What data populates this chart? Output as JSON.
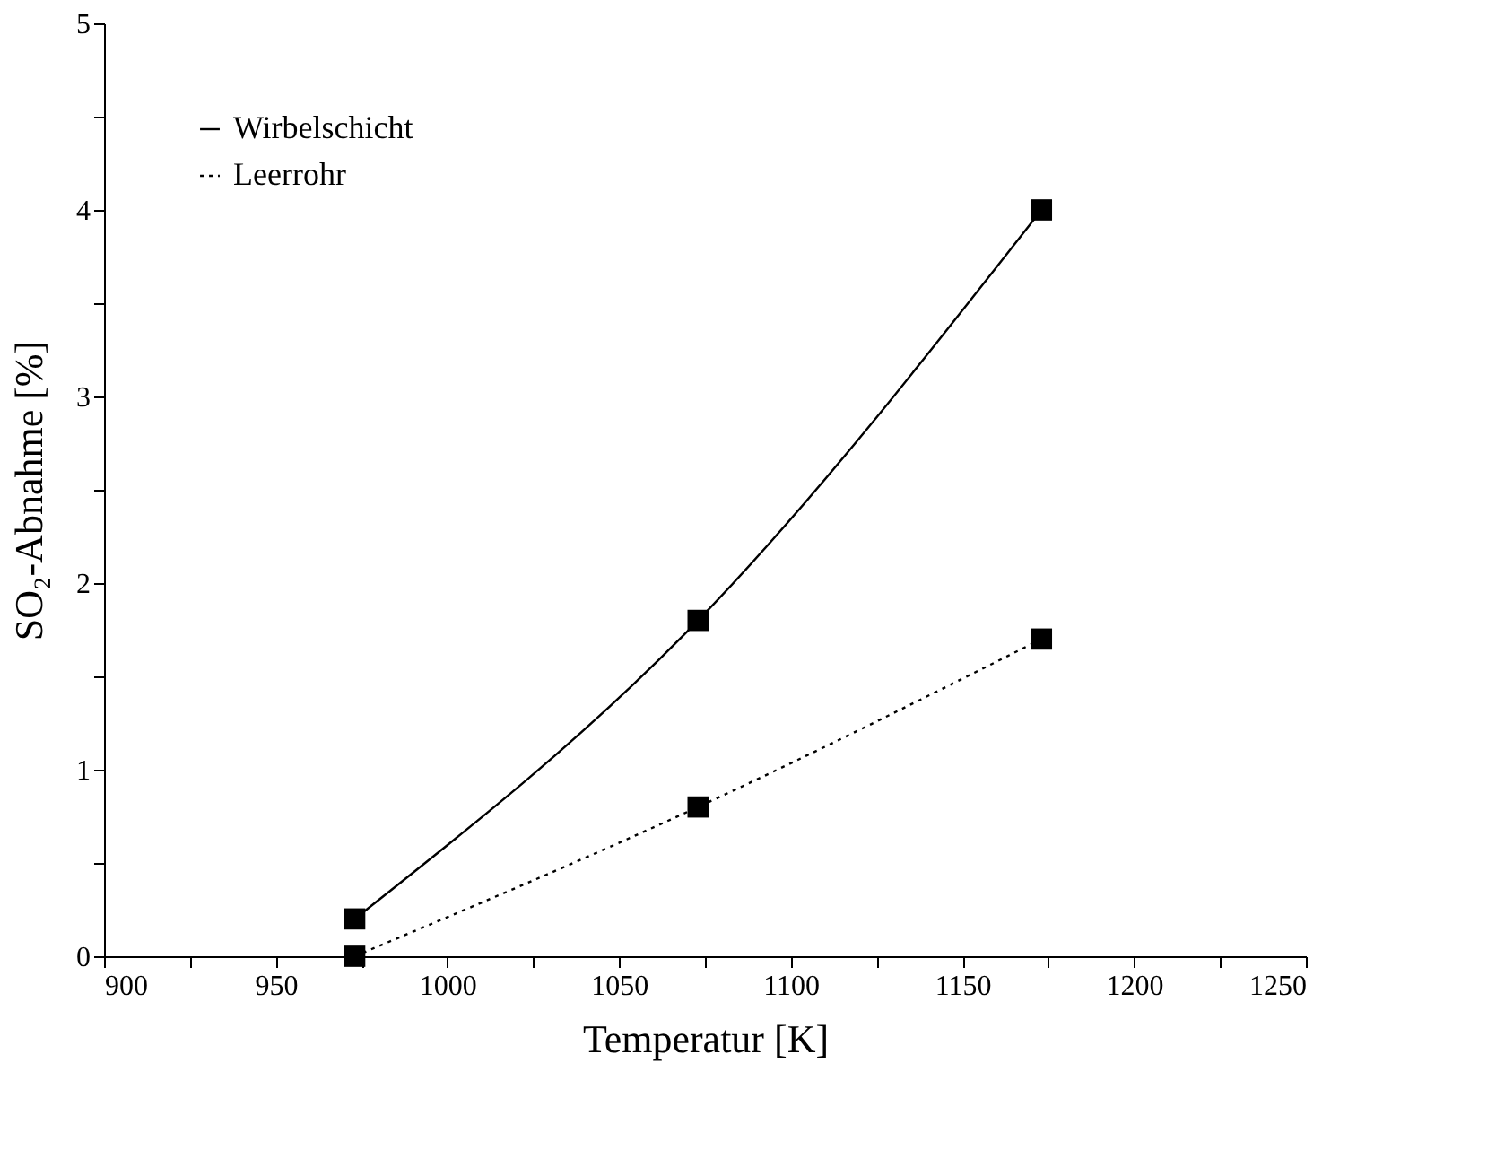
{
  "chart_data": {
    "type": "line",
    "xlabel": "Temperatur [K]",
    "ylabel": "SO₂-Abnahme [%]",
    "x": [
      973,
      1073,
      1173
    ],
    "series": [
      {
        "name": "Wirbelschicht",
        "color": "#000000",
        "values": [
          0.2,
          1.8,
          4.0
        ],
        "line_style": "solid"
      },
      {
        "name": "Leerrohr",
        "color": "#000000",
        "values": [
          0.0,
          0.8,
          1.7
        ],
        "line_style": "dotted"
      }
    ],
    "xlim": [
      900,
      1250
    ],
    "xticks": [
      900,
      {
        "value": 925,
        "label": null
      },
      950,
      {
        "value": 975,
        "label": null
      },
      1000,
      {
        "value": 1025,
        "label": null
      },
      1050,
      {
        "value": 1075,
        "label": null
      },
      1100,
      {
        "value": 1125,
        "label": null
      },
      1150,
      {
        "value": 1175,
        "label": null
      },
      1200,
      {
        "value": 1225,
        "label": null
      },
      1250
    ],
    "ylim": [
      0,
      5
    ],
    "yticks": [
      0,
      {
        "value": 0.5,
        "label": null
      },
      1,
      {
        "value": 1.5,
        "label": null
      },
      2,
      {
        "value": 2.5,
        "label": null
      },
      3,
      {
        "value": 3.5,
        "label": null
      },
      4,
      {
        "value": 4.5,
        "label": null
      },
      5
    ],
    "marker": "square",
    "grid": false,
    "legend": "top left"
  }
}
